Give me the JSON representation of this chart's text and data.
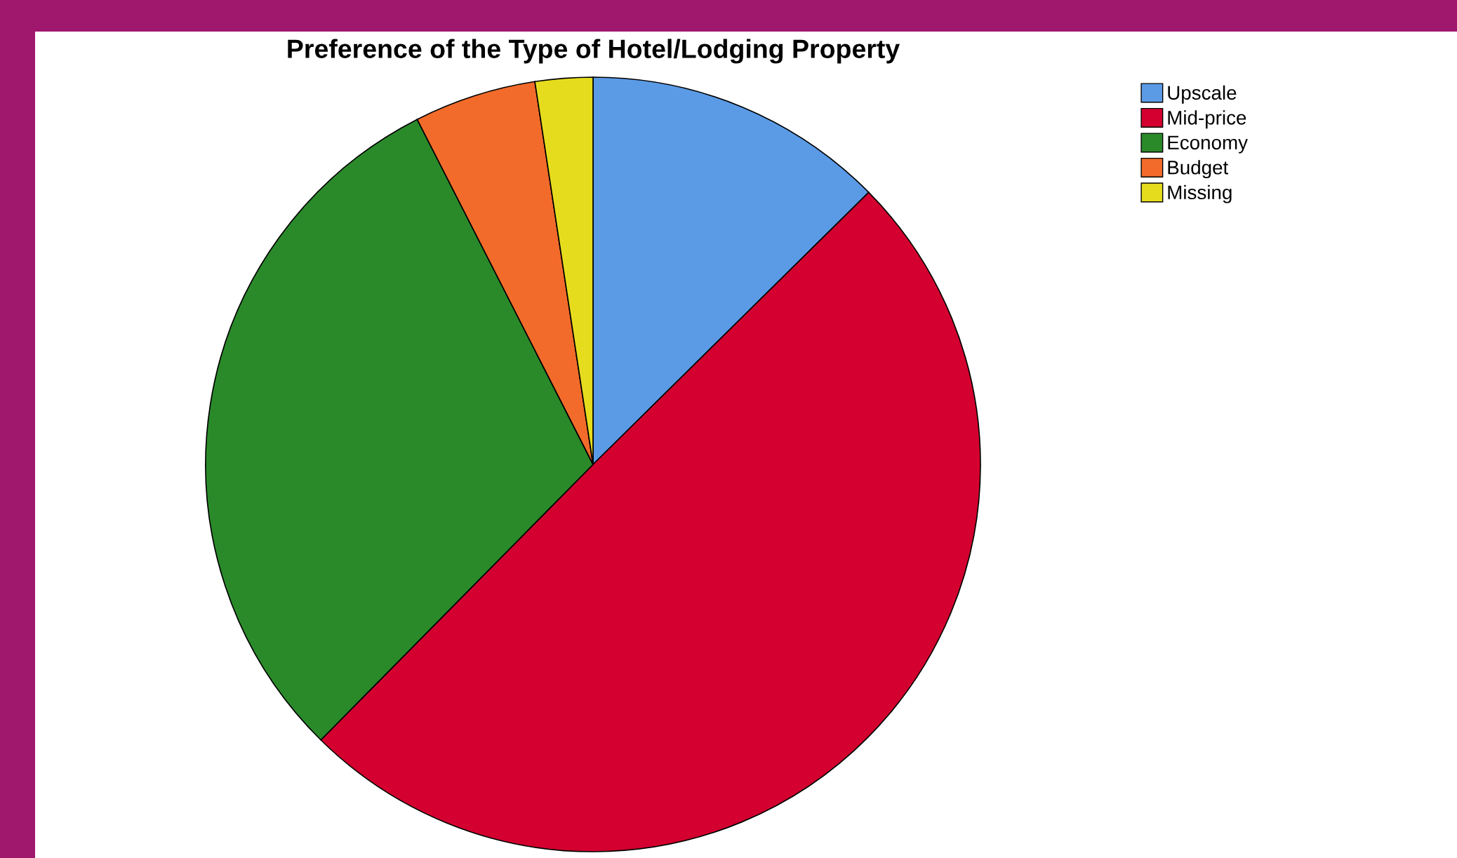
{
  "chart_data": {
    "type": "pie",
    "title": "Preference of the Type of Hotel/Lodging Property",
    "categories": [
      "Upscale",
      "Mid-price",
      "Economy",
      "Budget",
      "Missing"
    ],
    "values": [
      12.6,
      49.8,
      30.1,
      5.1,
      2.4
    ],
    "colors": [
      "#5b9be6",
      "#d40030",
      "#2a8a2a",
      "#f26b2a",
      "#e6dc1e"
    ],
    "legend": "top right"
  }
}
